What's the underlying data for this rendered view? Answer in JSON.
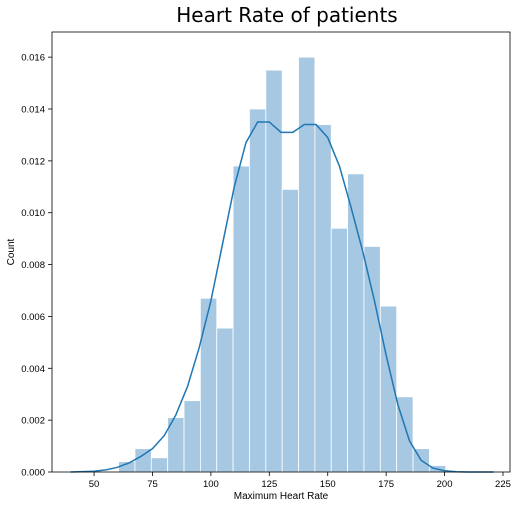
{
  "chart_data": {
    "type": "bar",
    "title": "Heart Rate of patients",
    "xlabel": "Maximum Heart Rate",
    "ylabel": "Count",
    "xlim": [
      32,
      228
    ],
    "ylim": [
      0,
      0.01697
    ],
    "xticks": [
      50,
      75,
      100,
      125,
      150,
      175,
      200,
      225
    ],
    "yticks": [
      0,
      0.002,
      0.004,
      0.006,
      0.008,
      0.01,
      0.012,
      0.014,
      0.016
    ],
    "xtick_labels": [
      "50",
      "75",
      "100",
      "125",
      "150",
      "175",
      "200",
      "225"
    ],
    "ytick_labels": [
      "0.000",
      "0.002",
      "0.004",
      "0.006",
      "0.008",
      "0.010",
      "0.012",
      "0.014",
      "0.016"
    ],
    "grid": false,
    "bins": [
      {
        "x0": 60.5,
        "x1": 67.5,
        "value": 0.0004
      },
      {
        "x0": 67.5,
        "x1": 74.5,
        "value": 0.0009
      },
      {
        "x0": 74.5,
        "x1": 81.5,
        "value": 0.00055
      },
      {
        "x0": 81.5,
        "x1": 88.5,
        "value": 0.0021
      },
      {
        "x0": 88.5,
        "x1": 95.5,
        "value": 0.00275
      },
      {
        "x0": 95.5,
        "x1": 102.5,
        "value": 0.0067
      },
      {
        "x0": 102.5,
        "x1": 109.5,
        "value": 0.00555
      },
      {
        "x0": 109.5,
        "x1": 116.5,
        "value": 0.0118
      },
      {
        "x0": 116.5,
        "x1": 123.5,
        "value": 0.014
      },
      {
        "x0": 123.5,
        "x1": 130.5,
        "value": 0.0155
      },
      {
        "x0": 130.5,
        "x1": 137.5,
        "value": 0.0109
      },
      {
        "x0": 137.5,
        "x1": 144.5,
        "value": 0.016
      },
      {
        "x0": 144.5,
        "x1": 151.5,
        "value": 0.0134
      },
      {
        "x0": 151.5,
        "x1": 158.5,
        "value": 0.0094
      },
      {
        "x0": 158.5,
        "x1": 165.5,
        "value": 0.0115
      },
      {
        "x0": 165.5,
        "x1": 172.5,
        "value": 0.0087
      },
      {
        "x0": 172.5,
        "x1": 179.5,
        "value": 0.0064
      },
      {
        "x0": 179.5,
        "x1": 186.5,
        "value": 0.0029
      },
      {
        "x0": 186.5,
        "x1": 193.5,
        "value": 0.0009
      },
      {
        "x0": 193.5,
        "x1": 200.5,
        "value": 0.00025
      }
    ],
    "kde": {
      "x": [
        40,
        50,
        55,
        60,
        65,
        70,
        75,
        80,
        85,
        90,
        95,
        100,
        105,
        110,
        115,
        120,
        125,
        130,
        135,
        140,
        145,
        150,
        155,
        160,
        165,
        170,
        175,
        180,
        185,
        190,
        195,
        200,
        205,
        210,
        215,
        221
      ],
      "y": [
        0.0,
        3e-05,
        8e-05,
        0.00018,
        0.00035,
        0.0006,
        0.0009,
        0.0014,
        0.0022,
        0.0033,
        0.0048,
        0.0066,
        0.0088,
        0.011,
        0.0127,
        0.0135,
        0.0135,
        0.0131,
        0.0131,
        0.0134,
        0.0134,
        0.0129,
        0.0118,
        0.0102,
        0.0085,
        0.0066,
        0.0045,
        0.0026,
        0.0012,
        0.00045,
        0.00015,
        5e-05,
        1e-05,
        0.0,
        0.0,
        0.0
      ]
    },
    "colors": {
      "bar_fill": "#a6c8e2",
      "kde_line": "#1f77b4"
    }
  }
}
